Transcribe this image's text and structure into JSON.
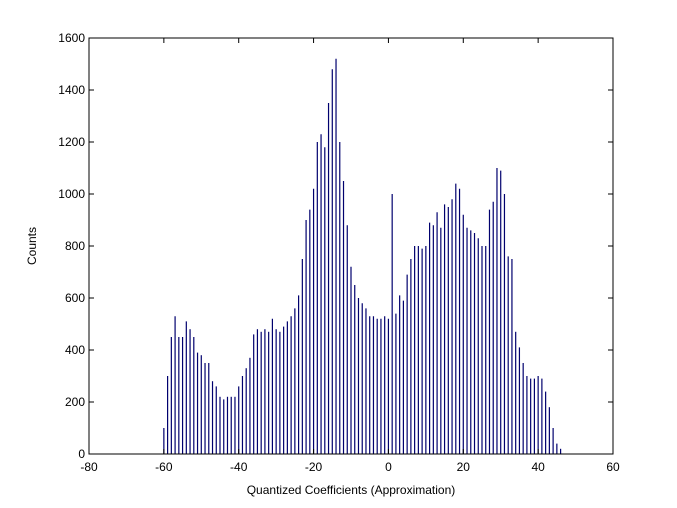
{
  "chart_data": {
    "type": "bar",
    "title": "",
    "xlabel": "Quantized Coefficients (Approximation)",
    "ylabel": "Counts",
    "xlim": [
      -80,
      60
    ],
    "ylim": [
      0,
      1600
    ],
    "xticks": [
      -80,
      -60,
      -40,
      -20,
      0,
      20,
      40,
      60
    ],
    "yticks": [
      0,
      200,
      400,
      600,
      800,
      1000,
      1200,
      1400,
      1600
    ],
    "grid": false,
    "bar_color": "#00006e",
    "x": [
      -60,
      -59,
      -58,
      -57,
      -56,
      -55,
      -54,
      -53,
      -52,
      -51,
      -50,
      -49,
      -48,
      -47,
      -46,
      -45,
      -44,
      -43,
      -42,
      -41,
      -40,
      -39,
      -38,
      -37,
      -36,
      -35,
      -34,
      -33,
      -32,
      -31,
      -30,
      -29,
      -28,
      -27,
      -26,
      -25,
      -24,
      -23,
      -22,
      -21,
      -20,
      -19,
      -18,
      -17,
      -16,
      -15,
      -14,
      -13,
      -12,
      -11,
      -10,
      -9,
      -8,
      -7,
      -6,
      -5,
      -4,
      -3,
      -2,
      -1,
      0,
      1,
      2,
      3,
      4,
      5,
      6,
      7,
      8,
      9,
      10,
      11,
      12,
      13,
      14,
      15,
      16,
      17,
      18,
      19,
      20,
      21,
      22,
      23,
      24,
      25,
      26,
      27,
      28,
      29,
      30,
      31,
      32,
      33,
      34,
      35,
      36,
      37,
      38,
      39,
      40,
      41,
      42,
      43,
      44,
      45,
      46,
      47
    ],
    "values": [
      100,
      300,
      450,
      530,
      450,
      450,
      510,
      480,
      450,
      390,
      380,
      350,
      350,
      280,
      260,
      220,
      210,
      220,
      220,
      220,
      260,
      300,
      330,
      370,
      460,
      480,
      470,
      480,
      470,
      520,
      480,
      470,
      490,
      510,
      530,
      560,
      610,
      750,
      900,
      940,
      1020,
      1200,
      1230,
      1180,
      1350,
      1480,
      1520,
      1200,
      1050,
      880,
      720,
      650,
      600,
      580,
      560,
      530,
      530,
      520,
      520,
      530,
      520,
      1000,
      540,
      610,
      590,
      690,
      750,
      800,
      800,
      790,
      800,
      890,
      880,
      930,
      870,
      960,
      950,
      980,
      1040,
      1020,
      920,
      870,
      860,
      850,
      830,
      800,
      800,
      940,
      970,
      1100,
      1090,
      1000,
      760,
      750,
      470,
      410,
      350,
      300,
      290,
      290,
      300,
      290,
      240,
      180,
      100,
      40,
      20,
      0
    ]
  }
}
